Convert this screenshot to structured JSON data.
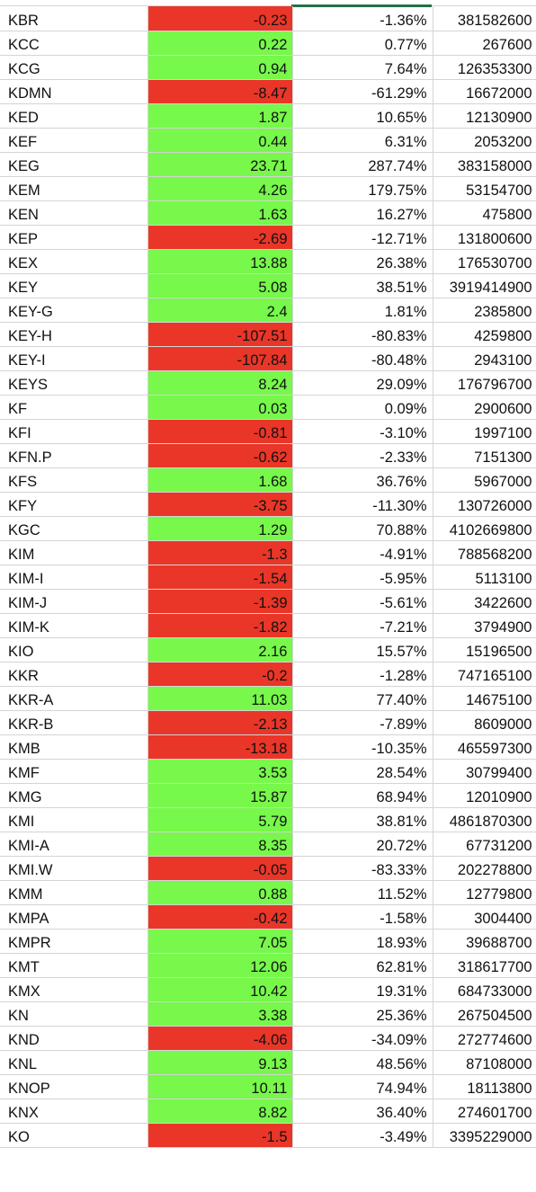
{
  "colors": {
    "up": "#77f84b",
    "down": "#e93628",
    "grid": "#d4d4d4",
    "selection": "#1f7246"
  },
  "rows": [
    {
      "symbol": "KBR",
      "change": "-0.23",
      "pct": "-1.36%",
      "volume": "381582600",
      "dir": "down"
    },
    {
      "symbol": "KCC",
      "change": "0.22",
      "pct": "0.77%",
      "volume": "267600",
      "dir": "up"
    },
    {
      "symbol": "KCG",
      "change": "0.94",
      "pct": "7.64%",
      "volume": "126353300",
      "dir": "up"
    },
    {
      "symbol": "KDMN",
      "change": "-8.47",
      "pct": "-61.29%",
      "volume": "16672000",
      "dir": "down"
    },
    {
      "symbol": "KED",
      "change": "1.87",
      "pct": "10.65%",
      "volume": "12130900",
      "dir": "up"
    },
    {
      "symbol": "KEF",
      "change": "0.44",
      "pct": "6.31%",
      "volume": "2053200",
      "dir": "up"
    },
    {
      "symbol": "KEG",
      "change": "23.71",
      "pct": "287.74%",
      "volume": "383158000",
      "dir": "up"
    },
    {
      "symbol": "KEM",
      "change": "4.26",
      "pct": "179.75%",
      "volume": "53154700",
      "dir": "up"
    },
    {
      "symbol": "KEN",
      "change": "1.63",
      "pct": "16.27%",
      "volume": "475800",
      "dir": "up"
    },
    {
      "symbol": "KEP",
      "change": "-2.69",
      "pct": "-12.71%",
      "volume": "131800600",
      "dir": "down"
    },
    {
      "symbol": "KEX",
      "change": "13.88",
      "pct": "26.38%",
      "volume": "176530700",
      "dir": "up"
    },
    {
      "symbol": "KEY",
      "change": "5.08",
      "pct": "38.51%",
      "volume": "3919414900",
      "dir": "up"
    },
    {
      "symbol": "KEY-G",
      "change": "2.4",
      "pct": "1.81%",
      "volume": "2385800",
      "dir": "up"
    },
    {
      "symbol": "KEY-H",
      "change": "-107.51",
      "pct": "-80.83%",
      "volume": "4259800",
      "dir": "down"
    },
    {
      "symbol": "KEY-I",
      "change": "-107.84",
      "pct": "-80.48%",
      "volume": "2943100",
      "dir": "down"
    },
    {
      "symbol": "KEYS",
      "change": "8.24",
      "pct": "29.09%",
      "volume": "176796700",
      "dir": "up"
    },
    {
      "symbol": "KF",
      "change": "0.03",
      "pct": "0.09%",
      "volume": "2900600",
      "dir": "up"
    },
    {
      "symbol": "KFI",
      "change": "-0.81",
      "pct": "-3.10%",
      "volume": "1997100",
      "dir": "down"
    },
    {
      "symbol": "KFN.P",
      "change": "-0.62",
      "pct": "-2.33%",
      "volume": "7151300",
      "dir": "down"
    },
    {
      "symbol": "KFS",
      "change": "1.68",
      "pct": "36.76%",
      "volume": "5967000",
      "dir": "up"
    },
    {
      "symbol": "KFY",
      "change": "-3.75",
      "pct": "-11.30%",
      "volume": "130726000",
      "dir": "down"
    },
    {
      "symbol": "KGC",
      "change": "1.29",
      "pct": "70.88%",
      "volume": "4102669800",
      "dir": "up"
    },
    {
      "symbol": "KIM",
      "change": "-1.3",
      "pct": "-4.91%",
      "volume": "788568200",
      "dir": "down"
    },
    {
      "symbol": "KIM-I",
      "change": "-1.54",
      "pct": "-5.95%",
      "volume": "5113100",
      "dir": "down"
    },
    {
      "symbol": "KIM-J",
      "change": "-1.39",
      "pct": "-5.61%",
      "volume": "3422600",
      "dir": "down"
    },
    {
      "symbol": "KIM-K",
      "change": "-1.82",
      "pct": "-7.21%",
      "volume": "3794900",
      "dir": "down"
    },
    {
      "symbol": "KIO",
      "change": "2.16",
      "pct": "15.57%",
      "volume": "15196500",
      "dir": "up"
    },
    {
      "symbol": "KKR",
      "change": "-0.2",
      "pct": "-1.28%",
      "volume": "747165100",
      "dir": "down"
    },
    {
      "symbol": "KKR-A",
      "change": "11.03",
      "pct": "77.40%",
      "volume": "14675100",
      "dir": "up"
    },
    {
      "symbol": "KKR-B",
      "change": "-2.13",
      "pct": "-7.89%",
      "volume": "8609000",
      "dir": "down"
    },
    {
      "symbol": "KMB",
      "change": "-13.18",
      "pct": "-10.35%",
      "volume": "465597300",
      "dir": "down"
    },
    {
      "symbol": "KMF",
      "change": "3.53",
      "pct": "28.54%",
      "volume": "30799400",
      "dir": "up"
    },
    {
      "symbol": "KMG",
      "change": "15.87",
      "pct": "68.94%",
      "volume": "12010900",
      "dir": "up"
    },
    {
      "symbol": "KMI",
      "change": "5.79",
      "pct": "38.81%",
      "volume": "4861870300",
      "dir": "up"
    },
    {
      "symbol": "KMI-A",
      "change": "8.35",
      "pct": "20.72%",
      "volume": "67731200",
      "dir": "up"
    },
    {
      "symbol": "KMI.W",
      "change": "-0.05",
      "pct": "-83.33%",
      "volume": "202278800",
      "dir": "down"
    },
    {
      "symbol": "KMM",
      "change": "0.88",
      "pct": "11.52%",
      "volume": "12779800",
      "dir": "up"
    },
    {
      "symbol": "KMPA",
      "change": "-0.42",
      "pct": "-1.58%",
      "volume": "3004400",
      "dir": "down"
    },
    {
      "symbol": "KMPR",
      "change": "7.05",
      "pct": "18.93%",
      "volume": "39688700",
      "dir": "up"
    },
    {
      "symbol": "KMT",
      "change": "12.06",
      "pct": "62.81%",
      "volume": "318617700",
      "dir": "up"
    },
    {
      "symbol": "KMX",
      "change": "10.42",
      "pct": "19.31%",
      "volume": "684733000",
      "dir": "up"
    },
    {
      "symbol": "KN",
      "change": "3.38",
      "pct": "25.36%",
      "volume": "267504500",
      "dir": "up"
    },
    {
      "symbol": "KND",
      "change": "-4.06",
      "pct": "-34.09%",
      "volume": "272774600",
      "dir": "down"
    },
    {
      "symbol": "KNL",
      "change": "9.13",
      "pct": "48.56%",
      "volume": "87108000",
      "dir": "up"
    },
    {
      "symbol": "KNOP",
      "change": "10.11",
      "pct": "74.94%",
      "volume": "18113800",
      "dir": "up"
    },
    {
      "symbol": "KNX",
      "change": "8.82",
      "pct": "36.40%",
      "volume": "274601700",
      "dir": "up"
    },
    {
      "symbol": "KO",
      "change": "-1.5",
      "pct": "-3.49%",
      "volume": "3395229000",
      "dir": "down"
    }
  ]
}
